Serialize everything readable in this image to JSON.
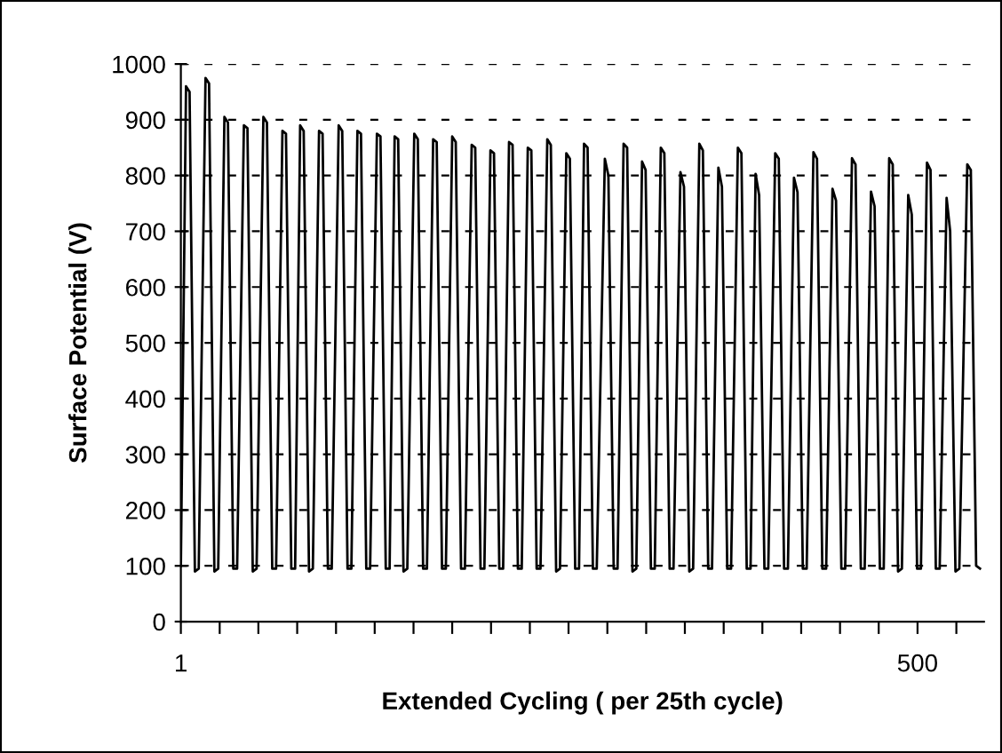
{
  "chart_data": {
    "type": "line",
    "xlabel": "Extended Cycling ( per 25th cycle)",
    "ylabel": "Surface Potential (V)",
    "xlim": [
      1,
      545
    ],
    "ylim": [
      0,
      1000
    ],
    "xticks": [
      1,
      {
        "value": 27.3,
        "label": null
      },
      {
        "value": 53.5,
        "label": null
      },
      {
        "value": 79.8,
        "label": null
      },
      {
        "value": 106.1,
        "label": null
      },
      {
        "value": 132.3,
        "label": null
      },
      {
        "value": 158.6,
        "label": null
      },
      {
        "value": 184.8,
        "label": null
      },
      {
        "value": 211.1,
        "label": null
      },
      {
        "value": 237.4,
        "label": null
      },
      {
        "value": 263.6,
        "label": null
      },
      {
        "value": 289.9,
        "label": null
      },
      {
        "value": 316.2,
        "label": null
      },
      {
        "value": 342.4,
        "label": null
      },
      {
        "value": 368.7,
        "label": null
      },
      {
        "value": 394.9,
        "label": null
      },
      {
        "value": 421.2,
        "label": null
      },
      {
        "value": 447.5,
        "label": null
      },
      {
        "value": 473.7,
        "label": null
      },
      500,
      {
        "value": 526.3,
        "label": null
      }
    ],
    "yticks": [
      0,
      100,
      200,
      300,
      400,
      500,
      600,
      700,
      800,
      900,
      1000
    ],
    "grid": "y",
    "marker": "none",
    "line_style": "solid",
    "series": [
      {
        "color": "#000000",
        "x": [
          1,
          4.5,
          6.9,
          10.5,
          13.1,
          17.7,
          20.1,
          23.7,
          26.3,
          30.5,
          32.9,
          36.5,
          39.1,
          43.7,
          46.1,
          49.7,
          52.3,
          56.9,
          59.3,
          62.9,
          65.5,
          69.8,
          72.2,
          75.8,
          78.4,
          81.8,
          84.2,
          87.8,
          90.4,
          94.6,
          97.0,
          100.6,
          103.2,
          107.9,
          110.3,
          113.9,
          116.5,
          120.6,
          123.0,
          126.6,
          129.2,
          133.8,
          136.2,
          139.8,
          142.4,
          145.8,
          148.2,
          151.8,
          154.4,
          159.1,
          161.5,
          165.1,
          167.7,
          171.9,
          174.3,
          177.9,
          180.5,
          184.8,
          187.2,
          190.8,
          193.4,
          198.0,
          200.4,
          204.0,
          206.6,
          210.7,
          213.1,
          216.7,
          219.3,
          223.3,
          225.7,
          229.3,
          231.9,
          236.0,
          238.4,
          242.0,
          244.6,
          249.2,
          251.6,
          255.2,
          257.8,
          262.1,
          264.5,
          268.1,
          270.7,
          274.1,
          276.5,
          280.1,
          282.7,
          288.2,
          290.6,
          294.2,
          296.8,
          300.9,
          303.3,
          306.9,
          309.5,
          313.4,
          315.8,
          319.4,
          322.0,
          326.1,
          328.5,
          332.1,
          334.7,
          339.4,
          341.8,
          345.4,
          348.0,
          352.2,
          354.6,
          358.2,
          360.8,
          365.1,
          367.5,
          371.1,
          373.7,
          378.3,
          380.7,
          384.3,
          386.9,
          390.3,
          392.7,
          396.3,
          398.9,
          403.6,
          406.0,
          409.6,
          412.2,
          416.3,
          418.7,
          422.3,
          424.9,
          429.5,
          431.9,
          435.5,
          438.1,
          442.4,
          444.8,
          448.4,
          451.0,
          455.6,
          458.0,
          461.6,
          464.2,
          468.5,
          470.9,
          474.5,
          477.1,
          480.8,
          483.2,
          486.8,
          489.4,
          493.7,
          496.1,
          499.7,
          502.3,
          506.4,
          508.8,
          512.4,
          515.0,
          519.7,
          522.1,
          525.7,
          528.3,
          533.7,
          536.1,
          539.7,
          542.3
        ],
        "values": [
          100,
          960,
          950,
          90,
          95,
          975,
          965,
          90,
          95,
          905,
          895,
          95,
          95,
          890,
          885,
          90,
          95,
          905,
          895,
          95,
          95,
          880,
          875,
          95,
          95,
          890,
          880,
          90,
          95,
          880,
          875,
          95,
          95,
          890,
          880,
          95,
          95,
          880,
          875,
          95,
          95,
          875,
          870,
          95,
          95,
          870,
          865,
          90,
          95,
          875,
          865,
          95,
          95,
          865,
          860,
          95,
          95,
          870,
          860,
          95,
          95,
          855,
          850,
          95,
          95,
          845,
          840,
          95,
          95,
          860,
          855,
          95,
          95,
          850,
          845,
          95,
          95,
          865,
          855,
          90,
          95,
          840,
          830,
          95,
          95,
          857,
          850,
          95,
          95,
          830,
          800,
          95,
          95,
          857,
          850,
          90,
          95,
          825,
          810,
          95,
          95,
          850,
          840,
          95,
          95,
          806,
          780,
          90,
          95,
          857,
          845,
          95,
          95,
          814,
          780,
          95,
          95,
          850,
          840,
          95,
          95,
          803,
          765,
          95,
          95,
          840,
          830,
          95,
          95,
          796,
          770,
          95,
          95,
          842,
          830,
          95,
          95,
          776,
          755,
          95,
          95,
          831,
          820,
          95,
          95,
          771,
          745,
          95,
          95,
          831,
          820,
          90,
          95,
          765,
          730,
          95,
          95,
          823,
          810,
          95,
          95,
          760,
          700,
          90,
          95,
          820,
          810,
          100,
          95
        ]
      }
    ]
  }
}
